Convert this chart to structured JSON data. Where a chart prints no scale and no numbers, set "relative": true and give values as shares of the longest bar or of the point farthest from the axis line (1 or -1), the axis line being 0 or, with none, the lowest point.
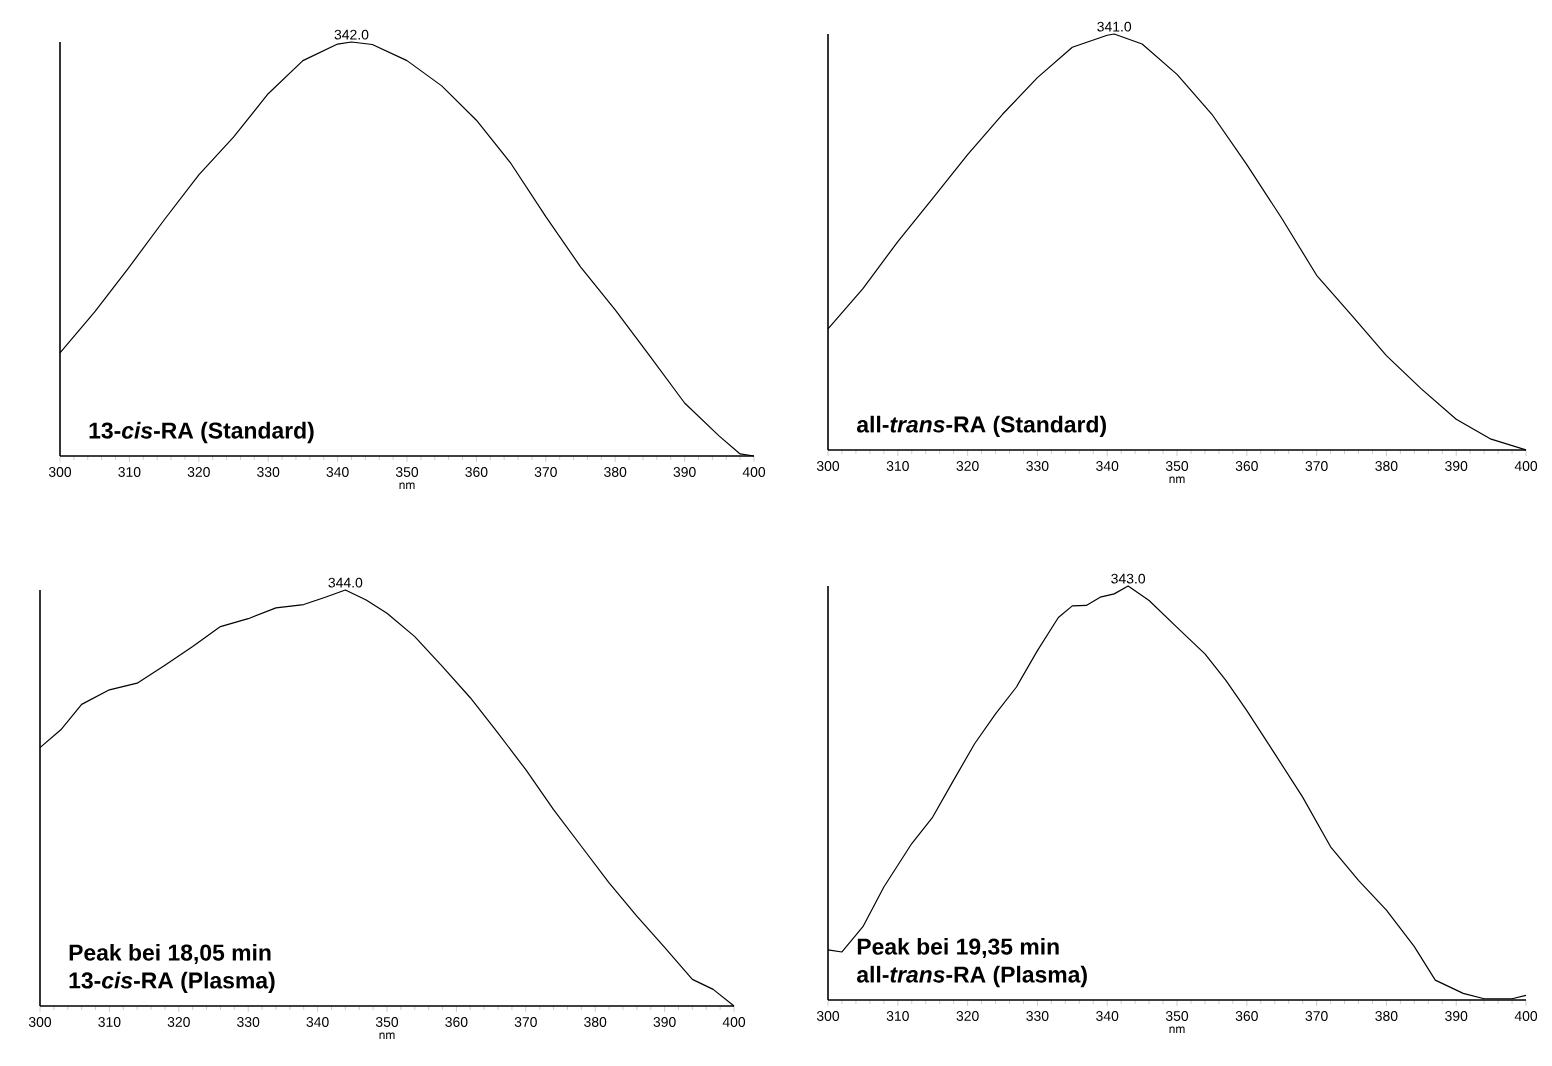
{
  "chart_data": [
    {
      "type": "line",
      "relative": true,
      "color": "#000000",
      "xlabel": "nm",
      "xlim": [
        300,
        400
      ],
      "xticks": [
        300,
        310,
        320,
        330,
        340,
        350,
        360,
        370,
        380,
        390,
        400
      ],
      "x": [
        300,
        305,
        310,
        315,
        320,
        325,
        330,
        335,
        340,
        342,
        345,
        350,
        355,
        360,
        365,
        370,
        375,
        380,
        385,
        390,
        395,
        398,
        400
      ],
      "values": [
        0.249,
        0.348,
        0.457,
        0.57,
        0.679,
        0.77,
        0.875,
        0.955,
        0.995,
        1,
        0.994,
        0.955,
        0.894,
        0.811,
        0.706,
        0.578,
        0.457,
        0.353,
        0.241,
        0.128,
        0.048,
        0.005,
        0
      ],
      "annotations": [
        {
          "text": "342.0",
          "x": 342,
          "y": 1
        },
        "13-*cis*-RA (Standard)"
      ]
    },
    {
      "type": "line",
      "relative": true,
      "color": "#000000",
      "xlabel": "nm",
      "xlim": [
        300,
        400
      ],
      "xticks": [
        300,
        310,
        320,
        330,
        340,
        350,
        360,
        370,
        380,
        390,
        400
      ],
      "x": [
        300,
        305,
        310,
        315,
        320,
        325,
        330,
        335,
        340,
        341,
        345,
        350,
        355,
        360,
        365,
        370,
        375,
        380,
        385,
        390,
        395,
        400
      ],
      "values": [
        0.291,
        0.388,
        0.501,
        0.605,
        0.71,
        0.807,
        0.895,
        0.968,
        0.997,
        1,
        0.976,
        0.903,
        0.807,
        0.686,
        0.557,
        0.42,
        0.324,
        0.227,
        0.147,
        0.074,
        0.026,
        0
      ],
      "annotations": [
        {
          "text": "341.0",
          "x": 341,
          "y": 1
        },
        "all-*trans*-RA (Standard)"
      ]
    },
    {
      "type": "line",
      "relative": true,
      "color": "#000000",
      "xlabel": "nm",
      "xlim": [
        300,
        400
      ],
      "xticks": [
        300,
        310,
        320,
        330,
        340,
        350,
        360,
        370,
        380,
        390,
        400
      ],
      "x": [
        300,
        303,
        306,
        310,
        314,
        318,
        322,
        326,
        330,
        334,
        338,
        341,
        344,
        347,
        350,
        354,
        358,
        362,
        366,
        370,
        374,
        378,
        382,
        386,
        390,
        394,
        397,
        400
      ],
      "values": [
        0.621,
        0.664,
        0.725,
        0.76,
        0.776,
        0.819,
        0.864,
        0.912,
        0.931,
        0.957,
        0.965,
        0.982,
        1,
        0.976,
        0.944,
        0.888,
        0.816,
        0.741,
        0.656,
        0.568,
        0.472,
        0.384,
        0.296,
        0.216,
        0.141,
        0.064,
        0.04,
        0
      ],
      "annotations": [
        {
          "text": "344.0",
          "x": 344,
          "y": 1
        },
        "Peak bei 18,05 min",
        "13-*cis*-RA (Plasma)"
      ]
    },
    {
      "type": "line",
      "relative": true,
      "color": "#000000",
      "xlabel": "nm",
      "xlim": [
        300,
        400
      ],
      "xticks": [
        300,
        310,
        320,
        330,
        340,
        350,
        360,
        370,
        380,
        390,
        400
      ],
      "x": [
        300,
        302,
        305,
        308,
        312,
        315,
        318,
        321,
        324,
        327,
        330,
        333,
        335,
        337,
        339,
        341,
        343,
        346,
        350,
        354,
        357,
        360,
        364,
        368,
        372,
        376,
        380,
        384,
        387,
        391,
        394,
        398,
        400
      ],
      "values": [
        0.121,
        0.116,
        0.177,
        0.273,
        0.378,
        0.442,
        0.531,
        0.619,
        0.691,
        0.756,
        0.844,
        0.924,
        0.952,
        0.953,
        0.973,
        0.981,
        1,
        0.965,
        0.9,
        0.836,
        0.772,
        0.699,
        0.595,
        0.49,
        0.37,
        0.289,
        0.217,
        0.129,
        0.048,
        0.016,
        0.003,
        0.003,
        0.011
      ],
      "annotations": [
        {
          "text": "343.0",
          "x": 343,
          "y": 1
        },
        "Peak bei 19,35 min",
        "all-*trans*-RA (Plasma)"
      ]
    }
  ]
}
